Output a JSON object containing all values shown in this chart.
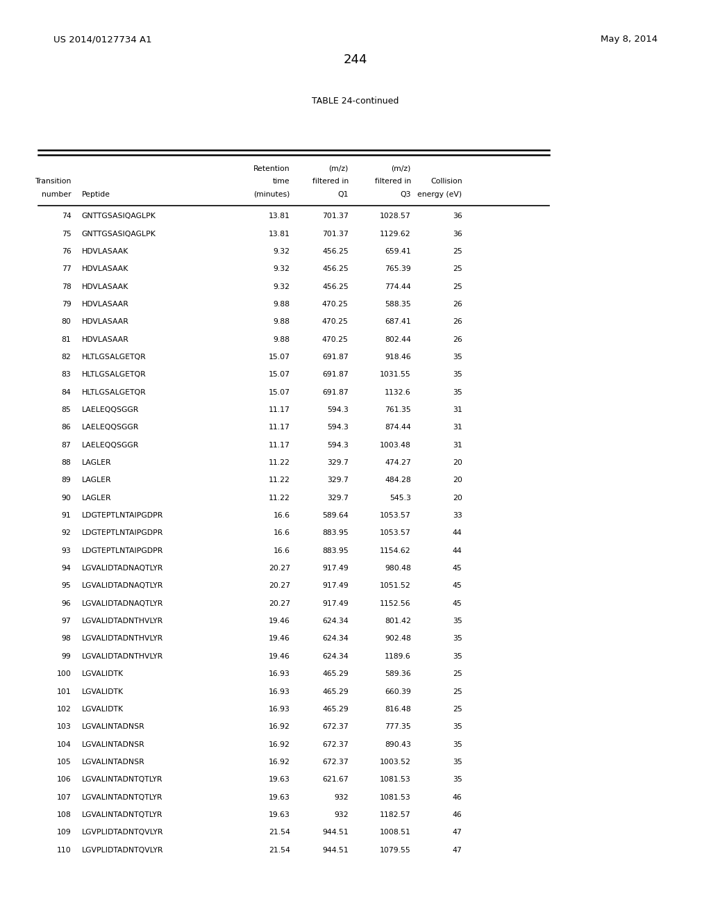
{
  "page_number": "244",
  "patent_number": "US 2014/0127734 A1",
  "patent_date": "May 8, 2014",
  "table_title": "TABLE 24-continued",
  "rows": [
    [
      74,
      "GNTTGSASIQAGLPK",
      "13.81",
      "701.37",
      "1028.57",
      "36"
    ],
    [
      75,
      "GNTTGSASIQAGLPK",
      "13.81",
      "701.37",
      "1129.62",
      "36"
    ],
    [
      76,
      "HDVLASAAK",
      "9.32",
      "456.25",
      "659.41",
      "25"
    ],
    [
      77,
      "HDVLASAAK",
      "9.32",
      "456.25",
      "765.39",
      "25"
    ],
    [
      78,
      "HDVLASAAK",
      "9.32",
      "456.25",
      "774.44",
      "25"
    ],
    [
      79,
      "HDVLASAAR",
      "9.88",
      "470.25",
      "588.35",
      "26"
    ],
    [
      80,
      "HDVLASAAR",
      "9.88",
      "470.25",
      "687.41",
      "26"
    ],
    [
      81,
      "HDVLASAAR",
      "9.88",
      "470.25",
      "802.44",
      "26"
    ],
    [
      82,
      "HLTLGSALGETQR",
      "15.07",
      "691.87",
      "918.46",
      "35"
    ],
    [
      83,
      "HLTLGSALGETQR",
      "15.07",
      "691.87",
      "1031.55",
      "35"
    ],
    [
      84,
      "HLTLGSALGETQR",
      "15.07",
      "691.87",
      "1132.6",
      "35"
    ],
    [
      85,
      "LAELEQQSGGR",
      "11.17",
      "594.3",
      "761.35",
      "31"
    ],
    [
      86,
      "LAELEQQSGGR",
      "11.17",
      "594.3",
      "874.44",
      "31"
    ],
    [
      87,
      "LAELEQQSGGR",
      "11.17",
      "594.3",
      "1003.48",
      "31"
    ],
    [
      88,
      "LAGLER",
      "11.22",
      "329.7",
      "474.27",
      "20"
    ],
    [
      89,
      "LAGLER",
      "11.22",
      "329.7",
      "484.28",
      "20"
    ],
    [
      90,
      "LAGLER",
      "11.22",
      "329.7",
      "545.3",
      "20"
    ],
    [
      91,
      "LDGTEPTLNTAIPGDPR",
      "16.6",
      "589.64",
      "1053.57",
      "33"
    ],
    [
      92,
      "LDGTEPTLNTAIPGDPR",
      "16.6",
      "883.95",
      "1053.57",
      "44"
    ],
    [
      93,
      "LDGTEPTLNTAIPGDPR",
      "16.6",
      "883.95",
      "1154.62",
      "44"
    ],
    [
      94,
      "LGVALIDTADNAQTLYR",
      "20.27",
      "917.49",
      "980.48",
      "45"
    ],
    [
      95,
      "LGVALIDTADNAQTLYR",
      "20.27",
      "917.49",
      "1051.52",
      "45"
    ],
    [
      96,
      "LGVALIDTADNAQTLYR",
      "20.27",
      "917.49",
      "1152.56",
      "45"
    ],
    [
      97,
      "LGVALIDTADNTHVLYR",
      "19.46",
      "624.34",
      "801.42",
      "35"
    ],
    [
      98,
      "LGVALIDTADNTHVLYR",
      "19.46",
      "624.34",
      "902.48",
      "35"
    ],
    [
      99,
      "LGVALIDTADNTHVLYR",
      "19.46",
      "624.34",
      "1189.6",
      "35"
    ],
    [
      100,
      "LGVALIDTK",
      "16.93",
      "465.29",
      "589.36",
      "25"
    ],
    [
      101,
      "LGVALIDTK",
      "16.93",
      "465.29",
      "660.39",
      "25"
    ],
    [
      102,
      "LGVALIDTK",
      "16.93",
      "465.29",
      "816.48",
      "25"
    ],
    [
      103,
      "LGVALINTADNSR",
      "16.92",
      "672.37",
      "777.35",
      "35"
    ],
    [
      104,
      "LGVALINTADNSR",
      "16.92",
      "672.37",
      "890.43",
      "35"
    ],
    [
      105,
      "LGVALINTADNSR",
      "16.92",
      "672.37",
      "1003.52",
      "35"
    ],
    [
      106,
      "LGVALINTADNTQTLYR",
      "19.63",
      "621.67",
      "1081.53",
      "35"
    ],
    [
      107,
      "LGVALINTADNTQTLYR",
      "19.63",
      "932",
      "1081.53",
      "46"
    ],
    [
      108,
      "LGVALINTADNTQTLYR",
      "19.63",
      "932",
      "1182.57",
      "46"
    ],
    [
      109,
      "LGVPLIDTADNTQVLYR",
      "21.54",
      "944.51",
      "1008.51",
      "47"
    ],
    [
      110,
      "LGVPLIDTADNTQVLYR",
      "21.54",
      "944.51",
      "1079.55",
      "47"
    ]
  ],
  "background_color": "#ffffff",
  "text_color": "#000000"
}
